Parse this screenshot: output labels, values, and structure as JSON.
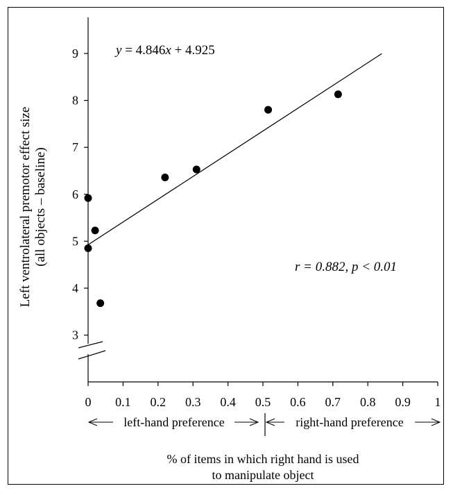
{
  "chart_data": {
    "type": "scatter",
    "title": "",
    "ylabel_line1": "Left ventrolateral premotor effect size",
    "ylabel_line2": "(all objects – baseline)",
    "xlabel_line1": "% of items in which right hand is used",
    "xlabel_line2": "to manipulate object",
    "xlim": [
      0,
      1
    ],
    "ylim": [
      3,
      9
    ],
    "x_ticks": [
      0,
      0.1,
      0.2,
      0.3,
      0.4,
      0.5,
      0.6,
      0.7,
      0.8,
      0.9,
      1
    ],
    "x_tick_labels": [
      "0",
      "0.1",
      "0.2",
      "0.3",
      "0.4",
      "0.5",
      "0.6",
      "0.7",
      "0.8",
      "0.9",
      "1"
    ],
    "y_ticks": [
      3,
      4,
      5,
      6,
      7,
      8,
      9
    ],
    "y_tick_labels": [
      "3",
      "4",
      "5",
      "6",
      "7",
      "8",
      "9"
    ],
    "y_axis_break": true,
    "points": [
      {
        "x": 0.0,
        "y": 5.92
      },
      {
        "x": 0.0,
        "y": 4.85
      },
      {
        "x": 0.02,
        "y": 5.23
      },
      {
        "x": 0.035,
        "y": 3.68
      },
      {
        "x": 0.22,
        "y": 6.36
      },
      {
        "x": 0.31,
        "y": 6.53
      },
      {
        "x": 0.515,
        "y": 7.8
      },
      {
        "x": 0.715,
        "y": 8.13
      }
    ],
    "fit": {
      "slope": 4.846,
      "intercept": 4.925,
      "x_range": [
        0,
        0.84
      ]
    },
    "annotations": {
      "equation": "y = 4.846x + 4.925",
      "equation_y": "y",
      "equation_mid": " = 4.846",
      "equation_x": "x",
      "equation_end": " + 4.925",
      "stats": "r = 0.882, p < 0.01"
    },
    "preference": {
      "left": "left-hand preference",
      "right": "right-hand preference",
      "divider_x": 0.5
    },
    "grid": false,
    "legend": "none"
  }
}
